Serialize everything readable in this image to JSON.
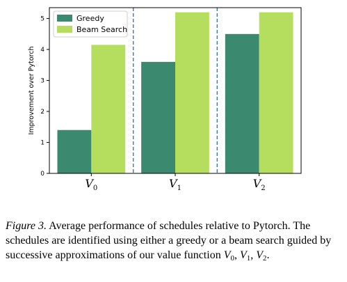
{
  "chart_data": {
    "type": "bar",
    "categories": [
      "V",
      "V",
      "V"
    ],
    "category_subscripts": [
      "0",
      "1",
      "2"
    ],
    "series": [
      {
        "name": "Greedy",
        "values": [
          1.4,
          3.6,
          4.5
        ],
        "color": "#3b8a6f"
      },
      {
        "name": "Beam Search",
        "values": [
          4.15,
          5.2,
          5.2
        ],
        "color": "#b5de5f"
      }
    ],
    "xlabel": "",
    "ylabel": "Improvement over Pytorch",
    "ylim": [
      0,
      5.35
    ],
    "yticks": [
      0,
      1,
      2,
      3,
      4,
      5
    ],
    "separators": "dashed vertical lines between groups",
    "separator_color": "#3b7dbd",
    "legend_position": "top-left",
    "grid": false
  },
  "caption": {
    "label": "Figure 3.",
    "text_1": " Average performance of schedules relative to Pytorch. The schedules are identified using either a greedy or a beam search guided by successive approximations of our value function ",
    "v0": "V",
    "v0_sub": "0",
    "sep_1": ", ",
    "v1": "V",
    "v1_sub": "1",
    "sep_2": ", ",
    "v2": "V",
    "v2_sub": "2",
    "text_end": "."
  }
}
